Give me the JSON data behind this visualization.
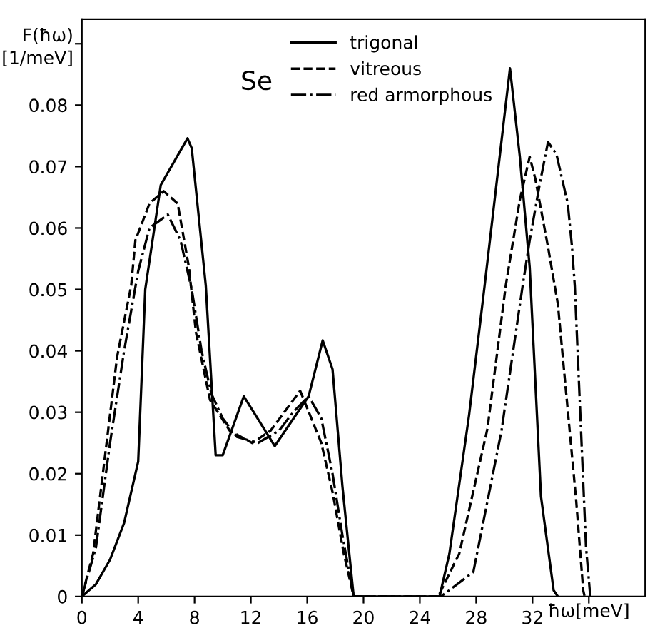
{
  "chart_data": {
    "type": "line",
    "ylabel": "F(ħω)\n[1/meV]",
    "xlabel": "ħω[meV]",
    "annotations": [
      "Se"
    ],
    "xlim": [
      0,
      40
    ],
    "ylim": [
      0,
      0.094
    ],
    "xticks": [
      0,
      4,
      8,
      12,
      16,
      20,
      24,
      28,
      32,
      {
        "value": 36,
        "label": null
      }
    ],
    "yticks": [
      0,
      0.01,
      0.02,
      0.03,
      0.04,
      0.05,
      0.06,
      0.07,
      0.08,
      {
        "value": 0.09,
        "label": null
      }
    ],
    "grid": false,
    "legend": "top",
    "marker": "none",
    "series": [
      {
        "name": "trigonal",
        "color": "#000000",
        "line_style": "solid",
        "x": [
          0,
          1,
          2,
          3,
          4,
          4.5,
          5.6,
          7.5,
          7.8,
          8.8,
          9.5,
          10,
          11.5,
          13.7,
          16.1,
          17.1,
          17.8,
          18.5,
          19.3,
          25.4,
          26.1,
          27.5,
          28.6,
          30.4,
          31.1,
          31.8,
          32.6,
          33.5,
          33.8
        ],
        "values": [
          0,
          0.002,
          0.006,
          0.012,
          0.022,
          0.05,
          0.067,
          0.0746,
          0.073,
          0.0506,
          0.023,
          0.023,
          0.0326,
          0.0245,
          0.0326,
          0.0417,
          0.037,
          0.018,
          0,
          0,
          0.007,
          0.0296,
          0.0506,
          0.086,
          0.0716,
          0.0536,
          0.0163,
          0.001,
          0
        ]
      },
      {
        "name": "vitreous",
        "color": "#000000",
        "line_style": "dashed",
        "x": [
          0,
          0.8,
          2.5,
          3.5,
          3.8,
          4.8,
          5.8,
          6.8,
          7.6,
          8.1,
          9.1,
          10.5,
          12.1,
          13.4,
          15.5,
          17,
          17.8,
          18.6,
          19.3,
          25.3,
          26.8,
          28.8,
          30.1,
          31.1,
          31.8,
          32.2,
          33.1,
          33.8,
          35.1,
          35.6,
          35.7
        ],
        "values": [
          0,
          0.007,
          0.039,
          0.0506,
          0.058,
          0.064,
          0.066,
          0.064,
          0.0536,
          0.043,
          0.032,
          0.027,
          0.025,
          0.027,
          0.0335,
          0.025,
          0.017,
          0.007,
          0,
          0,
          0.007,
          0.0273,
          0.0506,
          0.0646,
          0.0716,
          0.068,
          0.0569,
          0.0476,
          0.0156,
          0.001,
          0
        ]
      },
      {
        "name": "red armorphous",
        "color": "#000000",
        "line_style": "dashdot",
        "x": [
          0,
          1,
          2,
          3,
          4,
          4.8,
          6.1,
          7,
          7.8,
          8.5,
          9.2,
          10,
          11,
          12.5,
          14,
          15,
          16.1,
          17,
          17.8,
          18.5,
          19.3,
          25.5,
          27.8,
          29.8,
          31.3,
          31.8,
          32.5,
          33.1,
          33.7,
          34.5,
          34.8,
          35,
          35.8,
          36.1
        ],
        "values": [
          0,
          0.008,
          0.025,
          0.04,
          0.053,
          0.06,
          0.0622,
          0.058,
          0.05,
          0.04,
          0.033,
          0.029,
          0.026,
          0.025,
          0.027,
          0.03,
          0.0326,
          0.029,
          0.02,
          0.01,
          0,
          0,
          0.004,
          0.027,
          0.0506,
          0.058,
          0.067,
          0.074,
          0.072,
          0.064,
          0.057,
          0.0506,
          0.008,
          0
        ]
      }
    ]
  }
}
